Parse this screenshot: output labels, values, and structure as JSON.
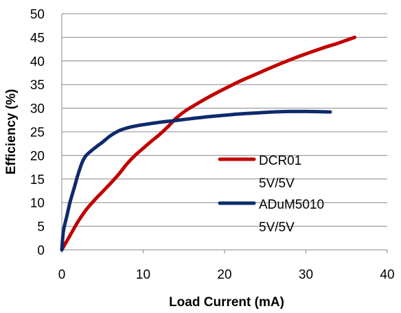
{
  "chart_data": {
    "type": "line",
    "title": "",
    "xlabel": "Load Current (mA)",
    "ylabel": "Efficiency (%)",
    "xlim": [
      0,
      40
    ],
    "ylim": [
      0,
      50
    ],
    "xticks": [
      "0",
      "10",
      "20",
      "30",
      "40"
    ],
    "yticks": [
      "0",
      "5",
      "10",
      "15",
      "20",
      "25",
      "30",
      "35",
      "40",
      "45",
      "50"
    ],
    "grid": "horizontal",
    "legend_position": "right-center",
    "series": [
      {
        "name": "DCR01 5V/5V",
        "legend_lines": [
          "DCR01",
          "5V/5V"
        ],
        "color": "#C00000",
        "points": [
          [
            0,
            0
          ],
          [
            1,
            3
          ],
          [
            2,
            6
          ],
          [
            3,
            8.5
          ],
          [
            4,
            10.5
          ],
          [
            5,
            12.3
          ],
          [
            6,
            14.1
          ],
          [
            7,
            16
          ],
          [
            8,
            18.2
          ],
          [
            9,
            20
          ],
          [
            10,
            21.5
          ],
          [
            11,
            23
          ],
          [
            12,
            24.4
          ],
          [
            13,
            26
          ],
          [
            14,
            27.8
          ],
          [
            15,
            29.2
          ],
          [
            16,
            30.3
          ],
          [
            18,
            32.3
          ],
          [
            20,
            34.1
          ],
          [
            22,
            35.8
          ],
          [
            24,
            37.3
          ],
          [
            26,
            38.8
          ],
          [
            28,
            40.2
          ],
          [
            30,
            41.5
          ],
          [
            32,
            42.7
          ],
          [
            34,
            43.8
          ],
          [
            36,
            45
          ]
        ]
      },
      {
        "name": "ADuM5010 5V/5V",
        "legend_lines": [
          "ADuM5010",
          "5V/5V"
        ],
        "color": "#0D2B6B",
        "points": [
          [
            0,
            0
          ],
          [
            0.2,
            4
          ],
          [
            0.6,
            7
          ],
          [
            1,
            10
          ],
          [
            1.5,
            13
          ],
          [
            2,
            16
          ],
          [
            2.5,
            18.5
          ],
          [
            3,
            20
          ],
          [
            4,
            21.5
          ],
          [
            5,
            22.8
          ],
          [
            6,
            24.2
          ],
          [
            7,
            25.2
          ],
          [
            8,
            25.8
          ],
          [
            9,
            26.2
          ],
          [
            10,
            26.5
          ],
          [
            12,
            27
          ],
          [
            14,
            27.4
          ],
          [
            16,
            27.8
          ],
          [
            18,
            28.2
          ],
          [
            20,
            28.5
          ],
          [
            22,
            28.8
          ],
          [
            24,
            29
          ],
          [
            26,
            29.2
          ],
          [
            28,
            29.3
          ],
          [
            30,
            29.3
          ],
          [
            33,
            29.2
          ]
        ]
      }
    ]
  }
}
